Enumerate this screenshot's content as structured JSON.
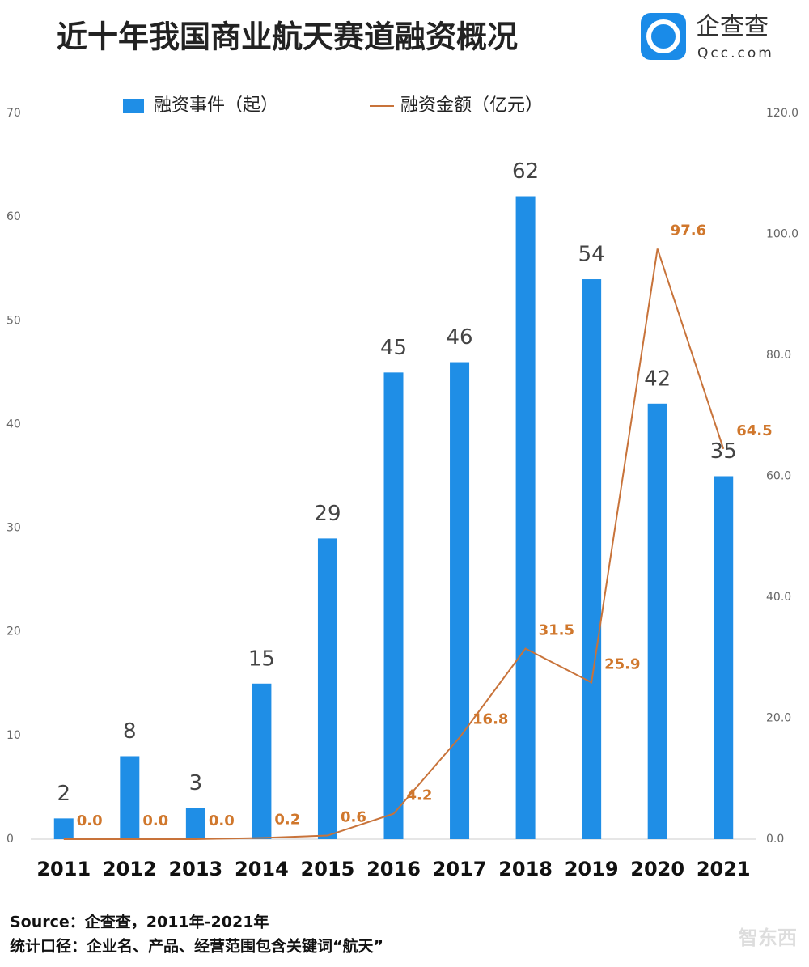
{
  "chart_data": {
    "type": "bar",
    "title": "近十年我国商业航天赛道融资概况",
    "categories": [
      "2011",
      "2012",
      "2013",
      "2014",
      "2015",
      "2016",
      "2017",
      "2018",
      "2019",
      "2020",
      "2021"
    ],
    "series": [
      {
        "name": "融资事件（起）",
        "type": "bar",
        "color": "#1f8ee6",
        "values": [
          2,
          8,
          3,
          15,
          29,
          45,
          46,
          62,
          54,
          42,
          35
        ]
      },
      {
        "name": "融资金额（亿元）",
        "type": "line",
        "axis": "y2",
        "color": "#c8733a",
        "values": [
          0,
          0,
          0,
          0.2,
          0.6,
          4.2,
          16.8,
          31.5,
          25.9,
          97.6,
          64.5
        ],
        "value_labels": [
          "0.0",
          "0.0",
          "0.0",
          "0.2",
          "0.6",
          "4.2",
          "16.8",
          "31.5",
          "25.9",
          "97.6",
          "64.5"
        ]
      }
    ],
    "ylim": [
      0,
      70
    ],
    "yticks": [
      0,
      10,
      20,
      30,
      40,
      50,
      60,
      70
    ],
    "y2lim": [
      0,
      120
    ],
    "y2ticks": [
      {
        "value": 0,
        "label": "0.0"
      },
      {
        "value": 20,
        "label": "20.0"
      },
      {
        "value": 40,
        "label": "40.0"
      },
      {
        "value": 60,
        "label": "60.0"
      },
      {
        "value": 80,
        "label": "80.0"
      },
      {
        "value": 100,
        "label": "100.0"
      },
      {
        "value": 120,
        "label": "120.0"
      }
    ]
  },
  "logo": {
    "name": "企查查",
    "url": "Qcc.com"
  },
  "footer": {
    "source": "Source：企查查，2011年-2021年",
    "scope": "统计口径：企业名、产品、经营范围包含关键词“航天”"
  },
  "watermark": "智东西"
}
